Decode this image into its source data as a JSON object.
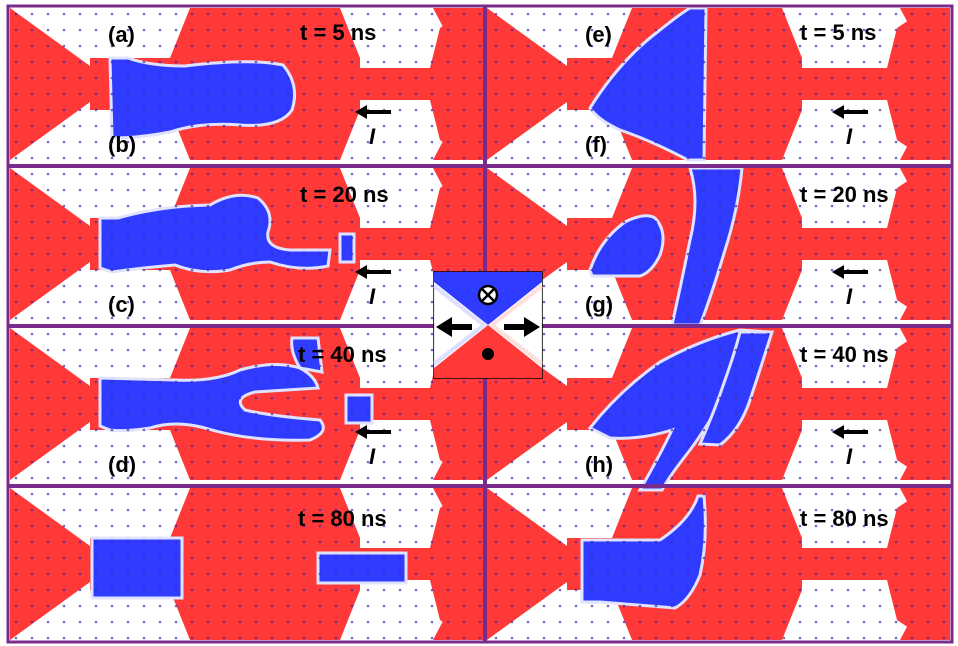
{
  "colors": {
    "up_domain": "#ff3838",
    "down_domain": "#2f3bff",
    "divider": "#7a2a8a",
    "background": "#ffffff"
  },
  "panels": [
    {
      "label": "(a)",
      "time": "t = 5 ns"
    },
    {
      "label": "(b)",
      "time": "t = 20 ns"
    },
    {
      "label": "(c)",
      "time": "t = 40 ns"
    },
    {
      "label": "(d)",
      "time": "t = 80 ns"
    },
    {
      "label": "(e)",
      "time": "t = 5 ns"
    },
    {
      "label": "(f)",
      "time": "t = 20 ns"
    },
    {
      "label": "(g)",
      "time": "t = 40 ns"
    },
    {
      "label": "(h)",
      "time": "t = 80 ns"
    }
  ],
  "current": {
    "symbol": "I",
    "direction": "left"
  },
  "legend": {
    "top_symbol": "⊗",
    "bottom_symbol": "●",
    "arrows": [
      "left-arrow",
      "right-arrow"
    ]
  }
}
